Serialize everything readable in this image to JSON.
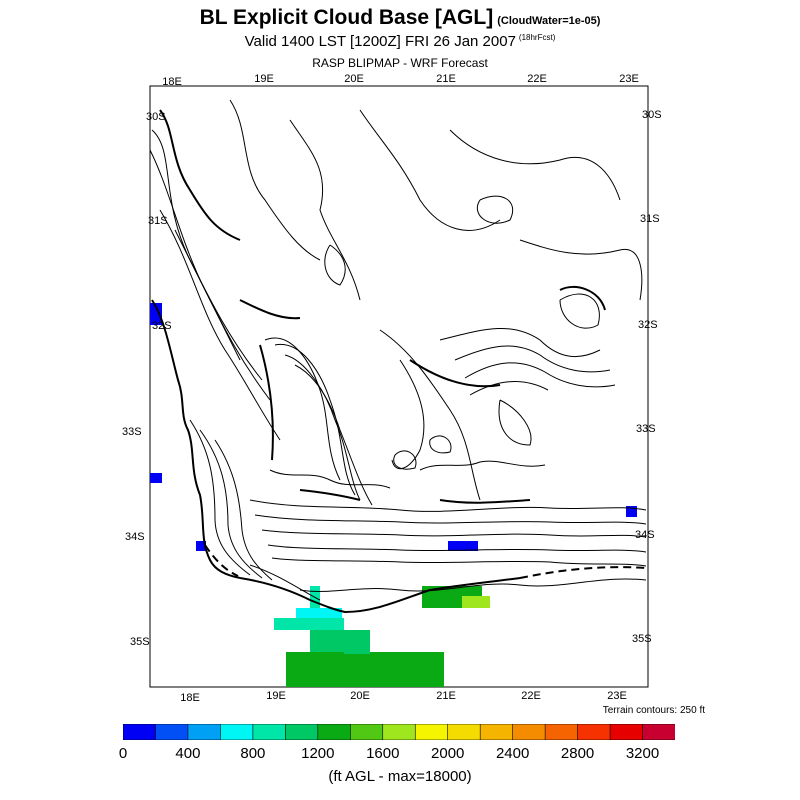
{
  "title": {
    "main": "BL Explicit Cloud Base [AGL]",
    "note": "(CloudWater=1e-05)"
  },
  "subtitle": {
    "main": "Valid 1400 LST [1200Z] FRI 26 Jan 2007",
    "note": "(18hrFcst)"
  },
  "source": "RASP BLIPMAP - WRF Forecast",
  "map": {
    "lon_labels_top": [
      "18E",
      "19E",
      "20E",
      "21E",
      "22E",
      "23E"
    ],
    "lon_labels_bottom": [
      "18E",
      "19E",
      "20E",
      "21E",
      "22E",
      "23E"
    ],
    "lat_labels_left": [
      "30S",
      "31S",
      "32S",
      "33S",
      "34S",
      "35S"
    ],
    "lat_labels_right": [
      "30S",
      "31S",
      "32S",
      "33S",
      "34S",
      "35S"
    ],
    "terrain_note": "Terrain contours: 250 ft"
  },
  "colorbar": {
    "colors": [
      "#0000f5",
      "#0050f5",
      "#00a0f5",
      "#00f5f5",
      "#00e6a8",
      "#00c864",
      "#0aaa14",
      "#50c814",
      "#a0e61e",
      "#f5f500",
      "#f5dc00",
      "#f5b400",
      "#f58c00",
      "#f56400",
      "#f53200",
      "#e60000",
      "#c80032"
    ],
    "tick_labels": [
      "0",
      "400",
      "800",
      "1200",
      "1600",
      "2000",
      "2400",
      "2800",
      "3200"
    ],
    "units": "(ft AGL - max=18000)"
  }
}
